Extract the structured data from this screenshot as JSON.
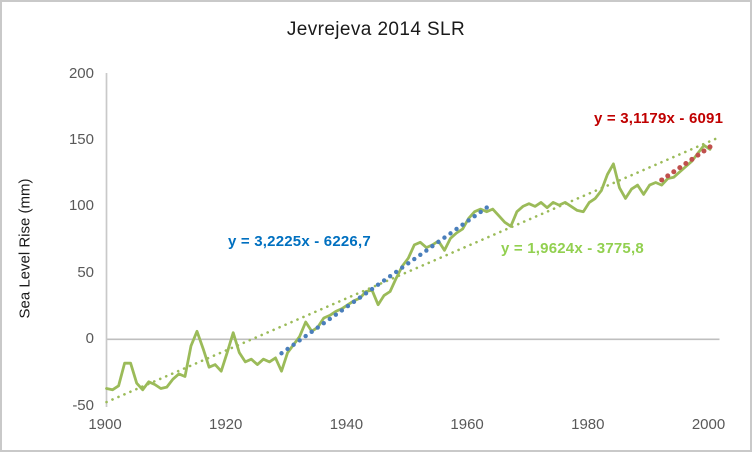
{
  "frame": {
    "border_color": "#c9c9c9",
    "background": "#ffffff"
  },
  "title": "Jevrejeva 2014 SLR",
  "y_axis": {
    "title": "Sea Level Rise (mm)",
    "tick_labels": [
      "200",
      "150",
      "100",
      "50",
      "0",
      "-50"
    ],
    "tick_values": [
      200,
      150,
      100,
      50,
      0,
      -50
    ],
    "label_color": "#595959",
    "axis_line_color": "#c9c9c9",
    "zero_line_color": "#bfbfbf"
  },
  "x_axis": {
    "tick_labels": [
      "1900",
      "1920",
      "1940",
      "1960",
      "1980",
      "2000"
    ],
    "tick_values": [
      1900,
      1920,
      1940,
      1960,
      1980,
      2000
    ],
    "label_color": "#595959"
  },
  "equations": {
    "blue": {
      "text": "y = 3,2225x - 6226,7",
      "color": "#0070C0"
    },
    "green": {
      "text": "y = 1,9624x - 3775,8",
      "color": "#92D050"
    },
    "red": {
      "text": "y = 3,1179x - 6091",
      "color": "#C00000"
    }
  },
  "chart_data": {
    "type": "line",
    "title": "Jevrejeva 2014 SLR",
    "xlabel": "",
    "ylabel": "Sea Level Rise (mm)",
    "xlim": [
      1900,
      2000
    ],
    "ylim": [
      -50,
      200
    ],
    "x_ticks": [
      1900,
      1920,
      1940,
      1960,
      1980,
      2000
    ],
    "y_ticks": [
      200,
      150,
      100,
      50,
      0,
      -50
    ],
    "grid": "zero-gridline-only",
    "legend_position": "none",
    "series": [
      {
        "name": "sea-level-annual",
        "type": "line",
        "color": "#9BBB59",
        "x_start": 1900,
        "x_step": 1,
        "values": [
          -37,
          -38,
          -35,
          -18,
          -18,
          -33,
          -38,
          -32,
          -34,
          -37,
          -36,
          -30,
          -26,
          -28,
          -5,
          6,
          -7,
          -21,
          -19,
          -24,
          -10,
          5,
          -10,
          -17,
          -15,
          -19,
          -15,
          -17,
          -14,
          -24,
          -10,
          -4,
          2,
          13,
          6,
          9,
          16,
          18,
          21,
          23,
          26,
          29,
          31,
          36,
          37,
          26,
          33,
          36,
          46,
          55,
          61,
          71,
          73,
          69,
          71,
          74,
          67,
          76,
          80,
          83,
          91,
          96,
          98,
          96,
          98,
          93,
          88,
          85,
          96,
          100,
          102,
          100,
          103,
          99,
          103,
          101,
          103,
          100,
          97,
          96,
          103,
          106,
          112,
          124,
          132,
          114,
          106,
          113,
          116,
          109,
          116,
          118,
          116,
          121,
          122,
          126,
          130,
          134,
          140,
          146,
          143
        ]
      },
      {
        "name": "trend-full-period-dotted",
        "type": "dotted-trendline",
        "color": "#9BBB59",
        "equation_label": "y = 1,9624x - 3775,8",
        "slope": 1.9624,
        "intercept": -3775.8,
        "x_range": [
          1900,
          2001
        ],
        "endpoint_values": [
          -47.2,
          151.0
        ]
      },
      {
        "name": "trend-1929-1963-dots",
        "type": "dot-markers",
        "color": "#4A7EBB",
        "equation_label": "y = 3,2225x - 6226,7",
        "slope": 3.2225,
        "intercept": -6226.7,
        "x_start": 1929,
        "x_step": 1,
        "values": [
          -10.5,
          -7.3,
          -4.1,
          -0.8,
          2.4,
          5.6,
          8.8,
          12.1,
          15.3,
          18.5,
          21.7,
          25.0,
          28.2,
          31.4,
          34.6,
          37.8,
          41.1,
          44.3,
          47.5,
          50.7,
          54.0,
          57.2,
          60.4,
          63.6,
          66.8,
          70.1,
          73.3,
          76.5,
          79.7,
          83.0,
          86.2,
          89.4,
          92.6,
          95.8,
          99.1
        ]
      },
      {
        "name": "trend-1992-2000-dots",
        "type": "dot-markers",
        "color": "#C0504D",
        "equation_label": "y = 3,1179x - 6091",
        "slope": 3.1179,
        "intercept": -6091,
        "x_start": 1992,
        "x_step": 1,
        "values": [
          119.9,
          123.0,
          126.1,
          129.2,
          132.3,
          135.4,
          138.6,
          141.7,
          144.8
        ]
      }
    ]
  }
}
